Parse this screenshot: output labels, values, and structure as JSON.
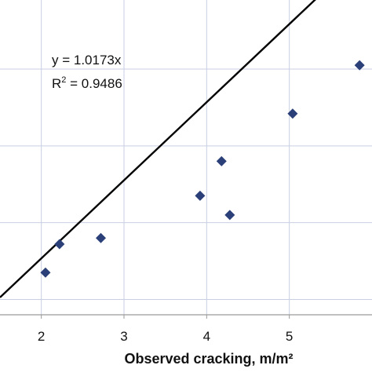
{
  "chart_data": {
    "type": "scatter",
    "title": "",
    "xlabel": "Observed cracking, m/m²",
    "ylabel": "",
    "xlim": [
      1.5,
      6.0
    ],
    "ylim": [
      1.3,
      5.4
    ],
    "x_ticks": [
      "2",
      "3",
      "4",
      "5"
    ],
    "x_tick_values": [
      2,
      3,
      4,
      5
    ],
    "y_gridlines": [
      1.5,
      2.5,
      3.5,
      4.5
    ],
    "grid": true,
    "series": [
      {
        "color": "#2b3f78",
        "marker": "diamond",
        "points": [
          {
            "x": 2.05,
            "y": 1.85
          },
          {
            "x": 2.22,
            "y": 2.22
          },
          {
            "x": 2.72,
            "y": 2.3
          },
          {
            "x": 3.92,
            "y": 2.85
          },
          {
            "x": 4.18,
            "y": 3.3
          },
          {
            "x": 4.28,
            "y": 2.6
          },
          {
            "x": 5.04,
            "y": 3.92
          },
          {
            "x": 5.85,
            "y": 4.55
          }
        ]
      }
    ],
    "trendline": {
      "slope": 1.0173,
      "intercept": 0,
      "color": "#000000",
      "equation_label": "y = 1.0173x",
      "r2_label": "R",
      "r2_superscript": "2",
      "r2_value": " = 0.9486"
    }
  }
}
